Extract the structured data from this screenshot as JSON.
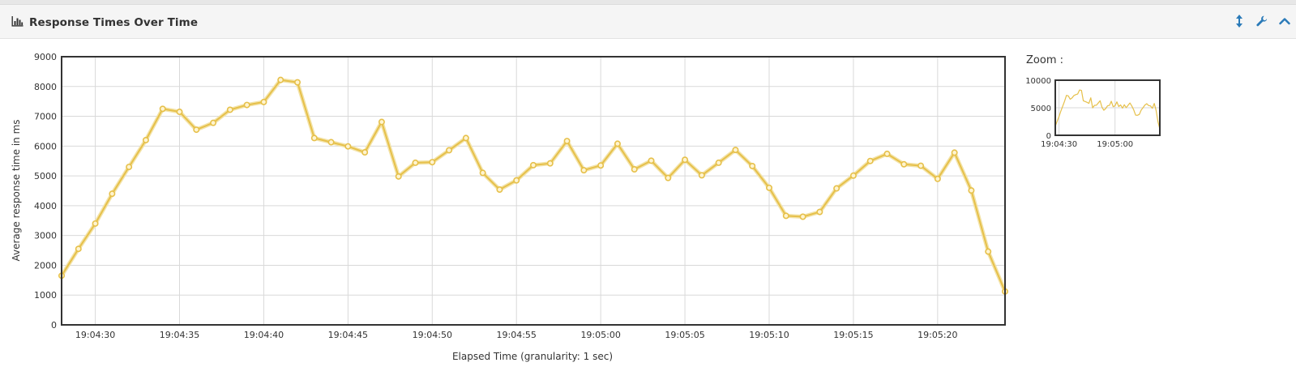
{
  "panel": {
    "title": "Response Times Over Time",
    "icons": [
      "bar-chart-icon",
      "resize-vertical-icon",
      "wrench-icon",
      "collapse-chevron-icon"
    ]
  },
  "zoom": {
    "label": "Zoom :",
    "y_ticks": [
      0,
      5000,
      10000
    ],
    "x_ticks": [
      "19:04:30",
      "19:05:00"
    ]
  },
  "colors": {
    "series": "#e6c04a",
    "series_fill": "#fff4cf",
    "grid": "#d9d9d9",
    "frame": "#333333"
  },
  "chart_data": {
    "type": "line",
    "xlabel": "Elapsed Time (granularity: 1 sec)",
    "ylabel": "Average response time in ms",
    "ylim": [
      0,
      9000
    ],
    "y_ticks": [
      0,
      1000,
      2000,
      3000,
      4000,
      5000,
      6000,
      7000,
      8000,
      9000
    ],
    "x_ticks": [
      "19:04:30",
      "19:04:35",
      "19:04:40",
      "19:04:45",
      "19:04:50",
      "19:04:55",
      "19:05:00",
      "19:05:05",
      "19:05:10",
      "19:05:15",
      "19:05:20"
    ],
    "x_start": "19:04:28",
    "x_end": "19:05:24",
    "grid": true,
    "series": [
      {
        "name": "",
        "x": [
          "19:04:28",
          "19:04:29",
          "19:04:30",
          "19:04:31",
          "19:04:32",
          "19:04:33",
          "19:04:34",
          "19:04:35",
          "19:04:36",
          "19:04:37",
          "19:04:38",
          "19:04:39",
          "19:04:40",
          "19:04:41",
          "19:04:42",
          "19:04:43",
          "19:04:44",
          "19:04:45",
          "19:04:46",
          "19:04:47",
          "19:04:48",
          "19:04:49",
          "19:04:50",
          "19:04:51",
          "19:04:52",
          "19:04:53",
          "19:04:54",
          "19:04:55",
          "19:04:56",
          "19:04:57",
          "19:04:58",
          "19:04:59",
          "19:05:00",
          "19:05:01",
          "19:05:02",
          "19:05:03",
          "19:05:04",
          "19:05:05",
          "19:05:06",
          "19:05:07",
          "19:05:08",
          "19:05:09",
          "19:05:10",
          "19:05:11",
          "19:05:12",
          "19:05:13",
          "19:05:14",
          "19:05:15",
          "19:05:16",
          "19:05:17",
          "19:05:18",
          "19:05:19",
          "19:05:20",
          "19:05:21",
          "19:05:22",
          "19:05:23",
          "19:05:24"
        ],
        "values": [
          1650,
          2550,
          3400,
          4400,
          5300,
          6200,
          7250,
          7150,
          6550,
          6780,
          7220,
          7380,
          7480,
          8220,
          8140,
          6270,
          6130,
          5990,
          5790,
          6810,
          4980,
          5440,
          5460,
          5860,
          6270,
          5100,
          4540,
          4850,
          5360,
          5420,
          6170,
          5190,
          5350,
          6080,
          5220,
          5510,
          4930,
          5540,
          5020,
          5440,
          5870,
          5330,
          4600,
          3660,
          3630,
          3790,
          4580,
          5010,
          5500,
          5740,
          5390,
          5340,
          4900,
          5780,
          4510,
          2460,
          1120
        ]
      }
    ]
  }
}
